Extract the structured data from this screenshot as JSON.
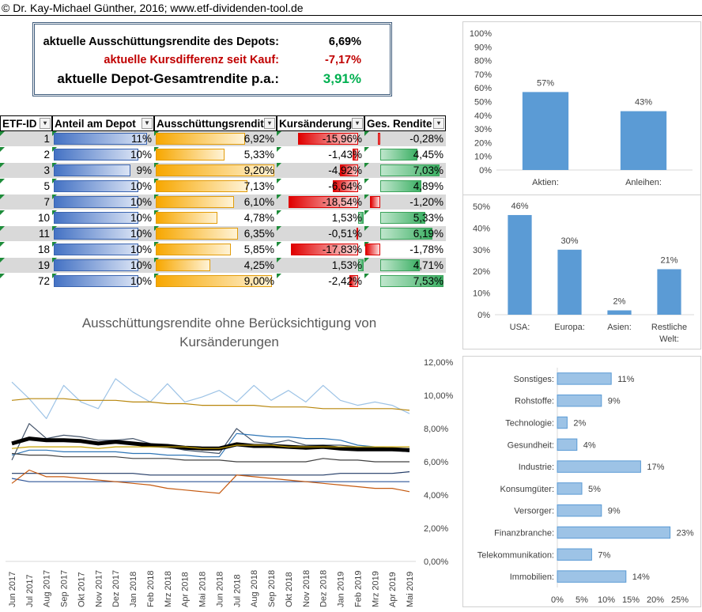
{
  "copyright": "© Dr. Kay-Michael Günther, 2016; www.etf-dividenden-tool.de",
  "summary": {
    "yield_label": "aktuelle Ausschüttungsrendite des Depots:",
    "yield_value": "6,69%",
    "price_label": "aktuelle Kursdifferenz seit Kauf:",
    "price_value": "-7,17%",
    "total_label": "aktuelle Depot-Gesamtrendite p.a.:",
    "total_value": "3,91%",
    "colors": {
      "negative": "#c00000",
      "positive": "#00b050"
    }
  },
  "table": {
    "headers": [
      "ETF-ID",
      "Anteil am Depot",
      "Ausschüttungsrendite",
      "Kursänderung",
      "Ges. Rendite"
    ],
    "rows": [
      {
        "id": "1",
        "share": "11%",
        "share_pct": 11,
        "yield": "6,92%",
        "yield_pct": 6.92,
        "change": "-15,96%",
        "change_pct": -15.96,
        "total": "-0,28%",
        "total_pct": -0.28
      },
      {
        "id": "2",
        "share": "10%",
        "share_pct": 10,
        "yield": "5,33%",
        "yield_pct": 5.33,
        "change": "-1,43%",
        "change_pct": -1.43,
        "total": "4,45%",
        "total_pct": 4.45
      },
      {
        "id": "3",
        "share": "9%",
        "share_pct": 9,
        "yield": "9,20%",
        "yield_pct": 9.2,
        "change": "-4,92%",
        "change_pct": -4.92,
        "total": "7,03%",
        "total_pct": 7.03
      },
      {
        "id": "5",
        "share": "10%",
        "share_pct": 10,
        "yield": "7,13%",
        "yield_pct": 7.13,
        "change": "-6,64%",
        "change_pct": -6.64,
        "total": "4,89%",
        "total_pct": 4.89
      },
      {
        "id": "7",
        "share": "10%",
        "share_pct": 10,
        "yield": "6,10%",
        "yield_pct": 6.1,
        "change": "-18,54%",
        "change_pct": -18.54,
        "total": "-1,20%",
        "total_pct": -1.2
      },
      {
        "id": "10",
        "share": "10%",
        "share_pct": 10,
        "yield": "4,78%",
        "yield_pct": 4.78,
        "change": "1,53%",
        "change_pct": 1.53,
        "total": "5,33%",
        "total_pct": 5.33
      },
      {
        "id": "11",
        "share": "10%",
        "share_pct": 10,
        "yield": "6,35%",
        "yield_pct": 6.35,
        "change": "-0,51%",
        "change_pct": -0.51,
        "total": "6,19%",
        "total_pct": 6.19
      },
      {
        "id": "18",
        "share": "10%",
        "share_pct": 10,
        "yield": "5,85%",
        "yield_pct": 5.85,
        "change": "-17,83%",
        "change_pct": -17.83,
        "total": "-1,78%",
        "total_pct": -1.78
      },
      {
        "id": "19",
        "share": "10%",
        "share_pct": 10,
        "yield": "4,25%",
        "yield_pct": 4.25,
        "change": "1,53%",
        "change_pct": 1.53,
        "total": "4,71%",
        "total_pct": 4.71
      },
      {
        "id": "72",
        "share": "10%",
        "share_pct": 10,
        "yield": "9,00%",
        "yield_pct": 9.0,
        "change": "-2,42%",
        "change_pct": -2.42,
        "total": "7,53%",
        "total_pct": 7.53
      }
    ]
  },
  "chart_data": [
    {
      "type": "bar",
      "categories": [
        "Aktien:",
        "Anleihen:"
      ],
      "values": [
        57,
        43
      ],
      "data_labels": [
        "57%",
        "43%"
      ],
      "y_ticks": [
        "0%",
        "10%",
        "20%",
        "30%",
        "40%",
        "50%",
        "60%",
        "70%",
        "80%",
        "90%",
        "100%"
      ],
      "ylim": [
        0,
        100
      ],
      "color": "#5b9bd5"
    },
    {
      "type": "bar",
      "categories": [
        "USA:",
        "Europa:",
        "Asien:",
        "Restliche Welt:"
      ],
      "category_lines": [
        [
          "USA:"
        ],
        [
          "Europa:"
        ],
        [
          "Asien:"
        ],
        [
          "Restliche",
          "Welt:"
        ]
      ],
      "values": [
        46,
        30,
        2,
        21
      ],
      "data_labels": [
        "46%",
        "30%",
        "2%",
        "21%"
      ],
      "y_ticks": [
        "0%",
        "10%",
        "20%",
        "30%",
        "40%",
        "50%"
      ],
      "ylim": [
        0,
        50
      ],
      "color": "#5b9bd5"
    },
    {
      "type": "bar",
      "orientation": "horizontal",
      "categories": [
        "Sonstiges:",
        "Rohstoffe:",
        "Technologie:",
        "Gesundheit:",
        "Industrie:",
        "Konsumgüter:",
        "Versorger:",
        "Finanzbranche:",
        "Telekommunikation:",
        "Immobilien:"
      ],
      "values": [
        11,
        9,
        2,
        4,
        17,
        5,
        9,
        23,
        7,
        14
      ],
      "data_labels": [
        "11%",
        "9%",
        "2%",
        "4%",
        "17%",
        "5%",
        "9%",
        "23%",
        "7%",
        "14%"
      ],
      "x_ticks": [
        "0%",
        "5%",
        "10%",
        "15%",
        "20%",
        "25%"
      ],
      "xlim": [
        0,
        25
      ],
      "color": "#9dc3e6"
    },
    {
      "type": "line",
      "title": "Ausschüttungsrendite ohne Berücksichtigung von Kursänderungen",
      "title_lines": [
        "Ausschüttungsrendite ohne Berücksichtigung von",
        "Kursänderungen"
      ],
      "x": [
        "Jun 2017",
        "Jul 2017",
        "Aug 2017",
        "Sep 2017",
        "Okt 2017",
        "Nov 2017",
        "Dez 2017",
        "Jan 2018",
        "Feb 2018",
        "Mrz 2018",
        "Apr 2018",
        "Mai 2018",
        "Jun 2018",
        "Jul 2018",
        "Aug 2018",
        "Sep 2018",
        "Okt 2018",
        "Nov 2018",
        "Dez 2018",
        "Jan 2019",
        "Feb 2019",
        "Mrz 2019",
        "Apr 2019",
        "Mai 2019"
      ],
      "y_ticks": [
        "0,00%",
        "2,00%",
        "4,00%",
        "6,00%",
        "8,00%",
        "10,00%",
        "12,00%"
      ],
      "ylim": [
        0,
        12
      ],
      "series": [
        {
          "color": "#9dc3e6",
          "width": 1.2,
          "values": [
            10.8,
            9.8,
            8.6,
            10.6,
            9.6,
            9.2,
            11.0,
            10.2,
            9.6,
            10.7,
            9.6,
            9.9,
            10.3,
            9.6,
            10.6,
            9.7,
            10.3,
            9.6,
            10.6,
            9.7,
            9.4,
            9.6,
            9.4,
            8.9
          ]
        },
        {
          "color": "#b8860b",
          "width": 1.2,
          "values": [
            9.7,
            9.8,
            9.8,
            9.8,
            9.7,
            9.7,
            9.7,
            9.6,
            9.6,
            9.5,
            9.5,
            9.4,
            9.4,
            9.4,
            9.4,
            9.3,
            9.3,
            9.3,
            9.2,
            9.2,
            9.2,
            9.2,
            9.2,
            9.1
          ]
        },
        {
          "color": "#44546a",
          "width": 1.2,
          "values": [
            6.1,
            8.3,
            7.4,
            7.6,
            7.5,
            7.3,
            7.3,
            7.4,
            7.1,
            6.9,
            6.7,
            6.6,
            6.5,
            8.0,
            7.2,
            7.1,
            7.3,
            7.0,
            7.0,
            7.0,
            6.9,
            6.9,
            6.7,
            6.6
          ]
        },
        {
          "color": "#2e75b6",
          "width": 1.2,
          "values": [
            6.4,
            6.7,
            6.7,
            6.6,
            6.6,
            6.6,
            6.6,
            6.5,
            6.5,
            6.4,
            6.4,
            6.3,
            6.3,
            7.7,
            7.6,
            7.5,
            7.5,
            7.4,
            7.4,
            7.3,
            7.0,
            6.9,
            6.8,
            6.7
          ]
        },
        {
          "color": "#000000",
          "width": 5,
          "values": [
            7.1,
            7.4,
            7.3,
            7.3,
            7.25,
            7.1,
            7.2,
            7.1,
            7.0,
            6.95,
            6.85,
            6.8,
            6.8,
            7.05,
            6.95,
            6.95,
            6.9,
            6.85,
            6.9,
            6.8,
            6.75,
            6.75,
            6.75,
            6.7
          ]
        },
        {
          "color": "#c5a000",
          "width": 1.2,
          "values": [
            6.8,
            6.9,
            6.9,
            6.9,
            6.9,
            6.8,
            6.9,
            6.9,
            6.9,
            6.9,
            6.9,
            6.8,
            6.8,
            7.0,
            7.0,
            7.0,
            6.9,
            6.9,
            6.9,
            6.9,
            6.9,
            6.9,
            6.9,
            6.9
          ]
        },
        {
          "color": "#404040",
          "width": 1.2,
          "values": [
            6.5,
            6.4,
            6.4,
            6.3,
            6.3,
            6.3,
            6.3,
            6.2,
            6.2,
            6.2,
            6.1,
            6.1,
            6.1,
            6.0,
            6.0,
            6.0,
            6.0,
            6.0,
            6.2,
            6.1,
            6.1,
            6.0,
            6.0,
            6.0
          ]
        },
        {
          "color": "#1f3864",
          "width": 1.2,
          "values": [
            5.3,
            5.3,
            5.3,
            5.3,
            5.3,
            5.3,
            5.3,
            5.3,
            5.2,
            5.2,
            5.2,
            5.2,
            5.2,
            5.2,
            5.2,
            5.2,
            5.2,
            5.2,
            5.2,
            5.3,
            5.3,
            5.3,
            5.3,
            5.4
          ]
        },
        {
          "color": "#2f5597",
          "width": 1.2,
          "values": [
            5.0,
            4.8,
            4.8,
            4.8,
            4.8,
            4.8,
            4.8,
            4.8,
            4.8,
            4.8,
            4.8,
            4.8,
            4.8,
            4.8,
            4.8,
            4.8,
            4.8,
            4.8,
            4.8,
            4.8,
            4.8,
            4.8,
            4.8,
            4.8
          ]
        },
        {
          "color": "#c55a11",
          "width": 1.2,
          "values": [
            4.7,
            5.5,
            5.1,
            5.1,
            5.0,
            4.9,
            4.8,
            4.7,
            4.6,
            4.4,
            4.3,
            4.2,
            4.1,
            5.2,
            5.1,
            5.0,
            4.9,
            4.8,
            4.7,
            4.6,
            4.5,
            4.4,
            4.4,
            4.2
          ]
        }
      ]
    }
  ]
}
